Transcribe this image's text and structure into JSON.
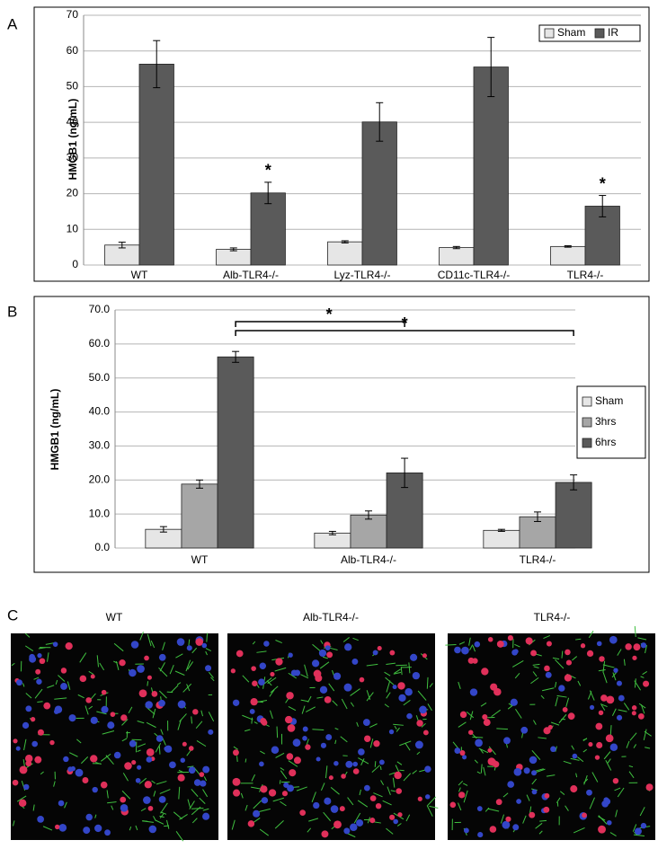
{
  "panel_labels": [
    "A",
    "B",
    "C"
  ],
  "image_captions": [
    "WT",
    "Alb-TLR4-/-",
    "TLR4-/-"
  ],
  "chart_data": [
    {
      "type": "bar",
      "ylabel": "HMGB1 (ng/mL)",
      "categories": [
        "WT",
        "Alb-TLR4-/-",
        "Lyz-TLR4-/-",
        "CD11c-TLR4-/-",
        "TLR4-/-"
      ],
      "series": [
        {
          "name": "Sham",
          "color": "#e6e6e6",
          "values": [
            5.6,
            4.4,
            6.5,
            4.9,
            5.2
          ],
          "errors": [
            0.8,
            0.4,
            0.3,
            0.3,
            0.2
          ]
        },
        {
          "name": "IR",
          "color": "#5a5a5a",
          "values": [
            56.3,
            20.2,
            40.1,
            55.5,
            16.5
          ],
          "errors": [
            6.6,
            3.0,
            5.4,
            8.3,
            3.0
          ]
        }
      ],
      "ylim": [
        0,
        70
      ],
      "yticks": [
        0,
        10,
        20,
        30,
        40,
        50,
        60,
        70
      ],
      "grid": true,
      "legend": "upper right",
      "annotations": [
        "*",
        "*"
      ]
    },
    {
      "type": "bar",
      "ylabel": "HMGB1 (ng/mL)",
      "categories": [
        "WT",
        "Alb-TLR4-/-",
        "TLR4-/-"
      ],
      "series": [
        {
          "name": "Sham",
          "color": "#e6e6e6",
          "values": [
            5.5,
            4.4,
            5.2
          ],
          "errors": [
            0.8,
            0.5,
            0.3
          ]
        },
        {
          "name": "3hrs",
          "color": "#a6a6a6",
          "values": [
            18.8,
            9.7,
            9.2
          ],
          "errors": [
            1.2,
            1.2,
            1.4
          ]
        },
        {
          "name": "6hrs",
          "color": "#5a5a5a",
          "values": [
            56.2,
            22.1,
            19.3
          ],
          "errors": [
            1.6,
            4.3,
            2.2
          ]
        }
      ],
      "ylim": [
        0,
        70
      ],
      "yticks": [
        {
          "value": 0,
          "label": "0.0"
        },
        {
          "value": 10,
          "label": "10.0"
        },
        {
          "value": 20,
          "label": "20.0"
        },
        {
          "value": 30,
          "label": "30.0"
        },
        {
          "value": 40,
          "label": "40.0"
        },
        {
          "value": 50,
          "label": "50.0"
        },
        {
          "value": 60,
          "label": "60.0"
        },
        {
          "value": 70,
          "label": "70.0"
        }
      ],
      "grid": true,
      "legend": "right",
      "annotations": [
        "*",
        "*"
      ]
    }
  ]
}
